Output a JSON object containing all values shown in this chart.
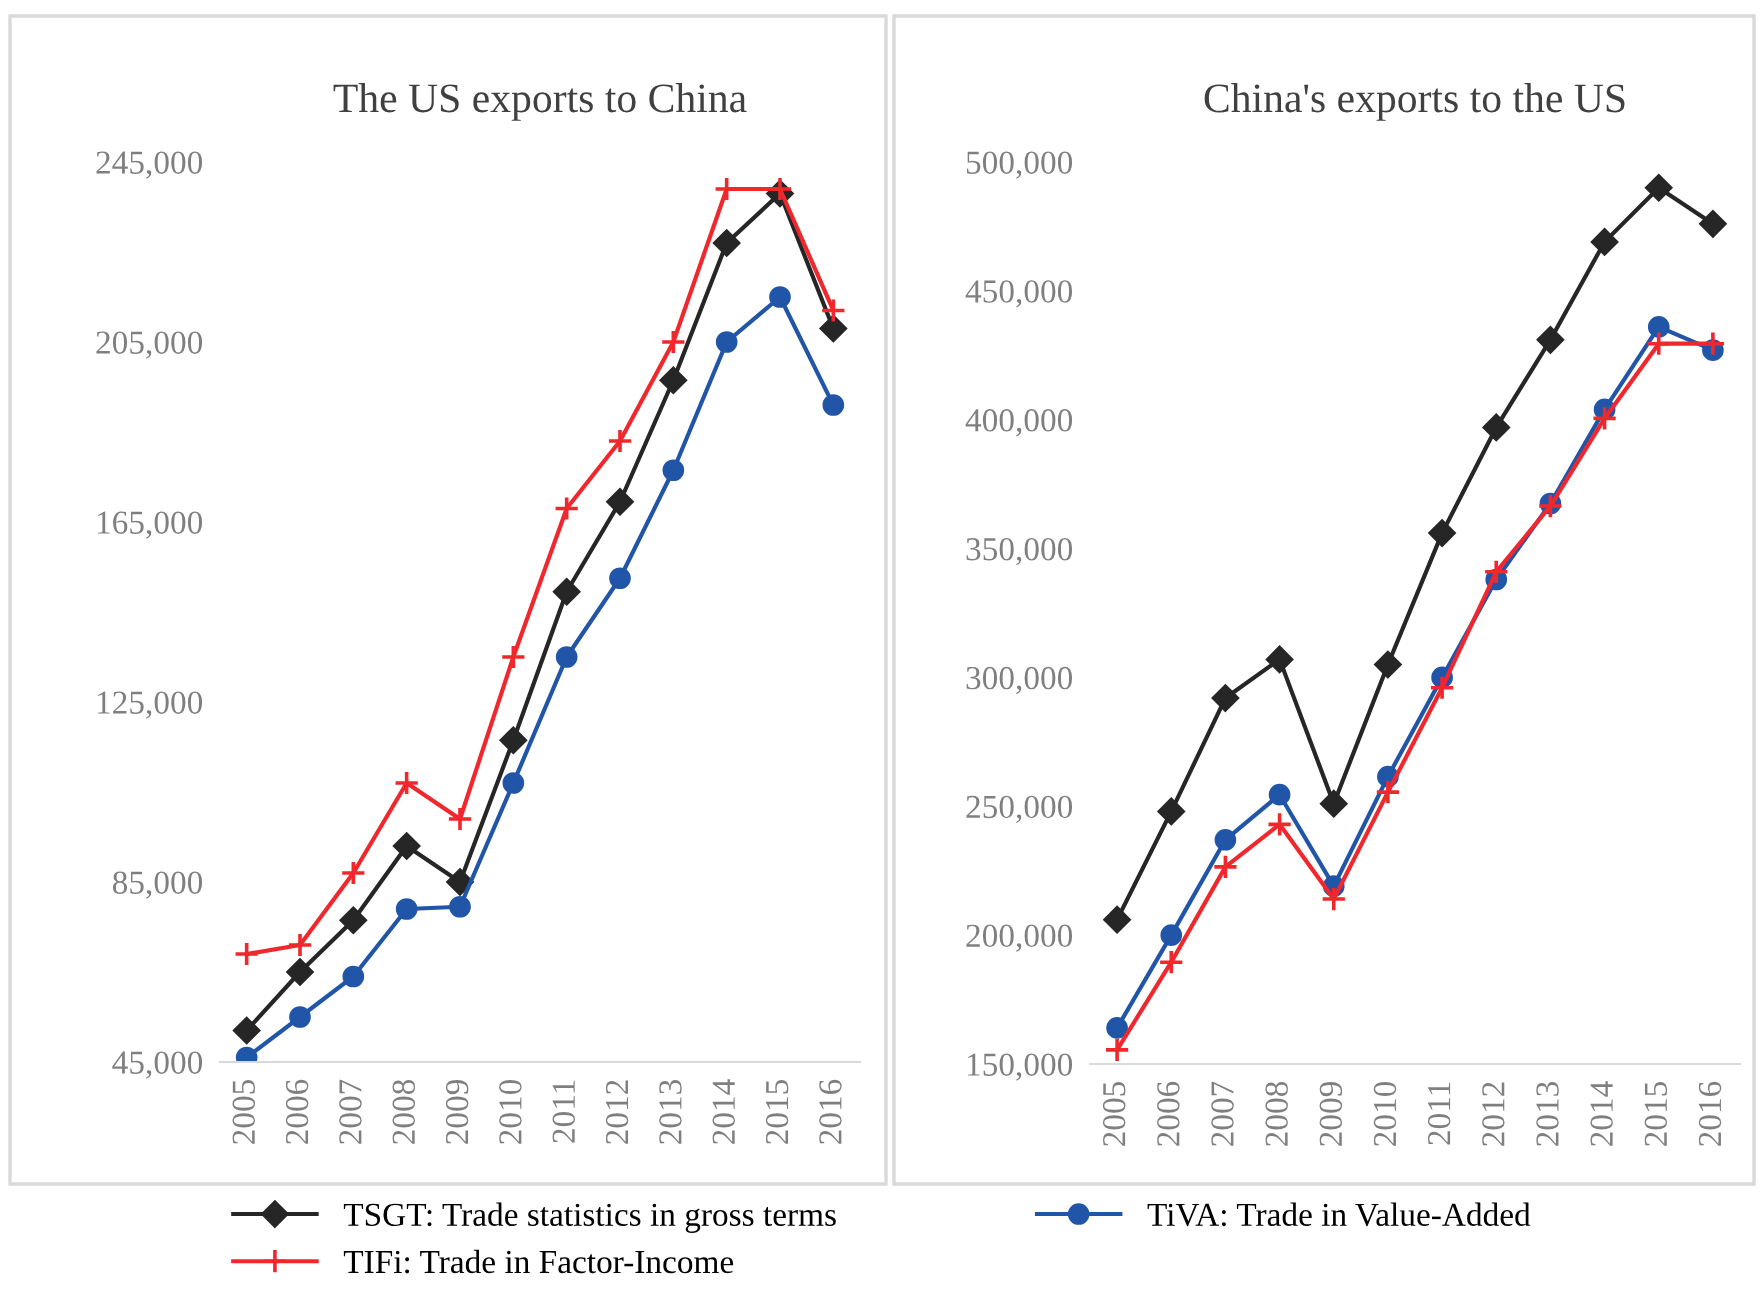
{
  "chart_data": [
    {
      "type": "line",
      "title": "The US exports to China",
      "categories": [
        "2005",
        "2006",
        "2007",
        "2008",
        "2009",
        "2010",
        "2011",
        "2012",
        "2013",
        "2014",
        "2015",
        "2016"
      ],
      "ylim": [
        45000,
        245000
      ],
      "yticks": [
        {
          "value": 45000,
          "label": "45,000"
        },
        {
          "value": 85000,
          "label": "85,000"
        },
        {
          "value": 125000,
          "label": "125,000"
        },
        {
          "value": 165000,
          "label": "165,000"
        },
        {
          "value": 205000,
          "label": "205,000"
        },
        {
          "value": 245000,
          "label": "245,000"
        }
      ],
      "grid": false,
      "legend": "bottom",
      "series": [
        {
          "name": "TSGT: Trade statistics in gross terms",
          "color": "#262626",
          "marker": "diamond",
          "values": [
            52000,
            65000,
            76500,
            93000,
            85000,
            116500,
            149500,
            169500,
            196500,
            227000,
            238000,
            208000
          ]
        },
        {
          "name": "TiVA: Trade in Value-Added",
          "color": "#2155a8",
          "marker": "circle",
          "values": [
            46000,
            55000,
            64000,
            79000,
            79500,
            107000,
            135000,
            152500,
            176500,
            205000,
            215000,
            191000
          ]
        },
        {
          "name": "TIFi: Trade in Factor-Income",
          "color": "#f0282d",
          "marker": "cross",
          "values": [
            69000,
            71000,
            87000,
            107000,
            99000,
            135000,
            168000,
            183000,
            205000,
            239000,
            239000,
            212000
          ]
        }
      ]
    },
    {
      "type": "line",
      "title": "China's exports to the US",
      "categories": [
        "2005",
        "2006",
        "2007",
        "2008",
        "2009",
        "2010",
        "2011",
        "2012",
        "2013",
        "2014",
        "2015",
        "2016"
      ],
      "ylim": [
        150000,
        500000
      ],
      "yticks": [
        {
          "value": 150000,
          "label": "150,000"
        },
        {
          "value": 200000,
          "label": "200,000"
        },
        {
          "value": 250000,
          "label": "250,000"
        },
        {
          "value": 300000,
          "label": "300,000"
        },
        {
          "value": 350000,
          "label": "350,000"
        },
        {
          "value": 400000,
          "label": "400,000"
        },
        {
          "value": 450000,
          "label": "450,000"
        },
        {
          "value": 500000,
          "label": "500,000"
        }
      ],
      "grid": false,
      "legend": "bottom",
      "series": [
        {
          "name": "TSGT: Trade statistics in gross terms",
          "color": "#262626",
          "marker": "diamond",
          "values": [
            206000,
            248000,
            292000,
            307000,
            251000,
            305000,
            356000,
            397000,
            431000,
            469000,
            490000,
            476000
          ]
        },
        {
          "name": "TiVA: Trade in Value-Added",
          "color": "#2155a8",
          "marker": "circle",
          "values": [
            164000,
            200000,
            237000,
            254500,
            219000,
            261500,
            300000,
            338000,
            367500,
            404000,
            436000,
            427000
          ]
        },
        {
          "name": "TIFi: Trade in Factor-Income",
          "color": "#f0282d",
          "marker": "cross",
          "values": [
            155500,
            189500,
            226500,
            243000,
            214000,
            255500,
            296000,
            341000,
            366500,
            400500,
            429500,
            429500
          ]
        }
      ]
    }
  ]
}
